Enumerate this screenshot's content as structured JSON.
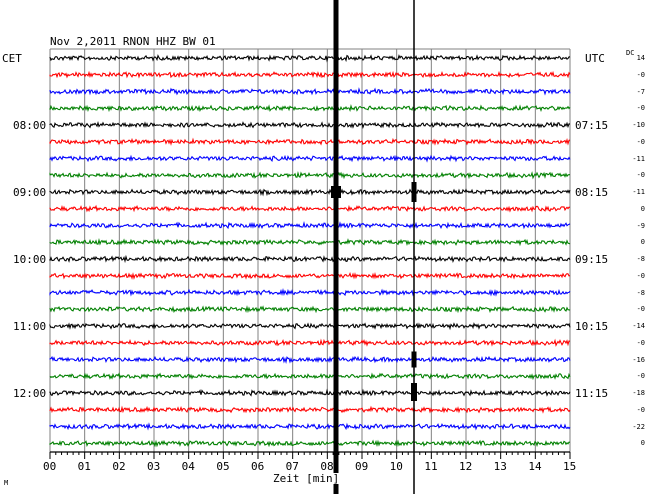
{
  "chart_data": {
    "type": "line",
    "title": "Nov 2,2011   RNON HHZ BW 01",
    "date": "Nov 2,2011",
    "station": "RNON HHZ BW 01",
    "left_timezone": "CET",
    "right_timezone": "UTC",
    "dc_header": "DC",
    "xlabel": "Zeit [min]",
    "x_ticks": [
      "00",
      "01",
      "02",
      "03",
      "04",
      "05",
      "06",
      "07",
      "08",
      "09",
      "10",
      "11",
      "12",
      "13",
      "14",
      "15"
    ],
    "xlim": [
      0,
      15
    ],
    "trace_count": 24,
    "trace_minutes": 15,
    "trace_colors": [
      "#000000",
      "#ff0000",
      "#0000ff",
      "#008000"
    ],
    "left_hour_labels": [
      {
        "trace": 4,
        "label": "08:00"
      },
      {
        "trace": 8,
        "label": "09:00"
      },
      {
        "trace": 12,
        "label": "10:00"
      },
      {
        "trace": 16,
        "label": "11:00"
      },
      {
        "trace": 20,
        "label": "12:00"
      }
    ],
    "right_hour_labels": [
      {
        "trace": 4,
        "label": "07:15"
      },
      {
        "trace": 8,
        "label": "08:15"
      },
      {
        "trace": 12,
        "label": "09:15"
      },
      {
        "trace": 16,
        "label": "10:15"
      },
      {
        "trace": 20,
        "label": "11:15"
      }
    ],
    "dc_offsets": [
      "14",
      "-0",
      "-7",
      "-0",
      "-10",
      "-0",
      "-11",
      "-0",
      "-11",
      "0",
      "-9",
      "0",
      "-8",
      "-0",
      "-8",
      "-0",
      "-14",
      "-0",
      "-16",
      "-0",
      "-18",
      "-0",
      "-22",
      "0"
    ],
    "events": [
      {
        "minute": 8.25,
        "label": "strong vertical band"
      },
      {
        "minute": 10.5,
        "label": "thin vertical line"
      }
    ],
    "grid": true,
    "legend": "none"
  },
  "colors": {
    "grid": "#808080",
    "axis": "#000000",
    "background": "#ffffff"
  },
  "footer_mark": "M"
}
